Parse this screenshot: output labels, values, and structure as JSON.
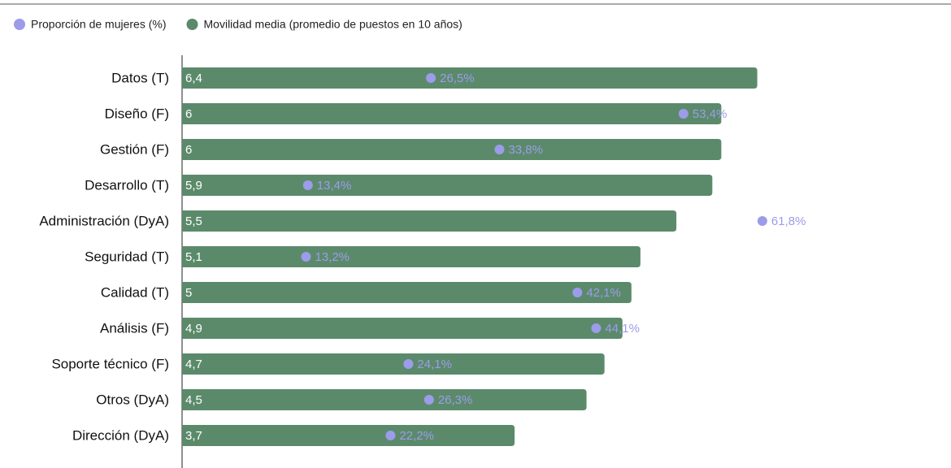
{
  "chart_data": {
    "type": "bar",
    "categories": [
      "Datos (T)",
      "Diseño (F)",
      "Gestión (F)",
      "Desarrollo (T)",
      "Administración (DyA)",
      "Seguridad (T)",
      "Calidad (T)",
      "Análisis (F)",
      "Soporte técnico (F)",
      "Otros (DyA)",
      "Dirección (DyA)"
    ],
    "series": [
      {
        "name": "Proporción de mujeres (%)",
        "color": "#9c9cea",
        "axis": "x2",
        "values": [
          26.5,
          53.4,
          33.8,
          13.4,
          61.8,
          13.2,
          42.1,
          44.1,
          24.1,
          26.3,
          22.2
        ],
        "value_labels": [
          "26,5%",
          "53,4%",
          "33,8%",
          "13,4%",
          "61,8%",
          "13,2%",
          "42,1%",
          "44,1%",
          "24,1%",
          "26,3%",
          "22,2%"
        ]
      },
      {
        "name": "Movilidad media (promedio de puestos en 10 años)",
        "color": "#5b8a6b",
        "values": [
          6.4,
          6,
          6,
          5.9,
          5.5,
          5.1,
          5,
          4.9,
          4.7,
          4.5,
          3.7
        ],
        "value_labels": [
          "6,4",
          "6",
          "6",
          "5,9",
          "5,5",
          "5,1",
          "5",
          "4,9",
          "4,7",
          "4,5",
          "3,7"
        ]
      }
    ],
    "xlim": [
      0,
      7
    ],
    "x2lim": [
      0,
      67
    ]
  }
}
